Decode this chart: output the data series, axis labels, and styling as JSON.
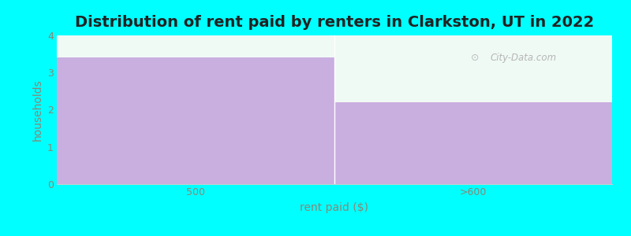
{
  "categories": [
    "500",
    ">600"
  ],
  "values": [
    3.4,
    2.2
  ],
  "bar_color": "#C9AEE0",
  "background_color": "#00FFFF",
  "plot_bg_color": "#F0FAF5",
  "title": "Distribution of rent paid by renters in Clarkston, UT in 2022",
  "xlabel": "rent paid ($)",
  "ylabel": "households",
  "ylim": [
    0,
    4
  ],
  "yticks": [
    0,
    1,
    2,
    3,
    4
  ],
  "title_fontsize": 14,
  "axis_label_fontsize": 10,
  "tick_fontsize": 9,
  "watermark": "City-Data.com",
  "tick_color": "#888877",
  "label_color": "#888877"
}
